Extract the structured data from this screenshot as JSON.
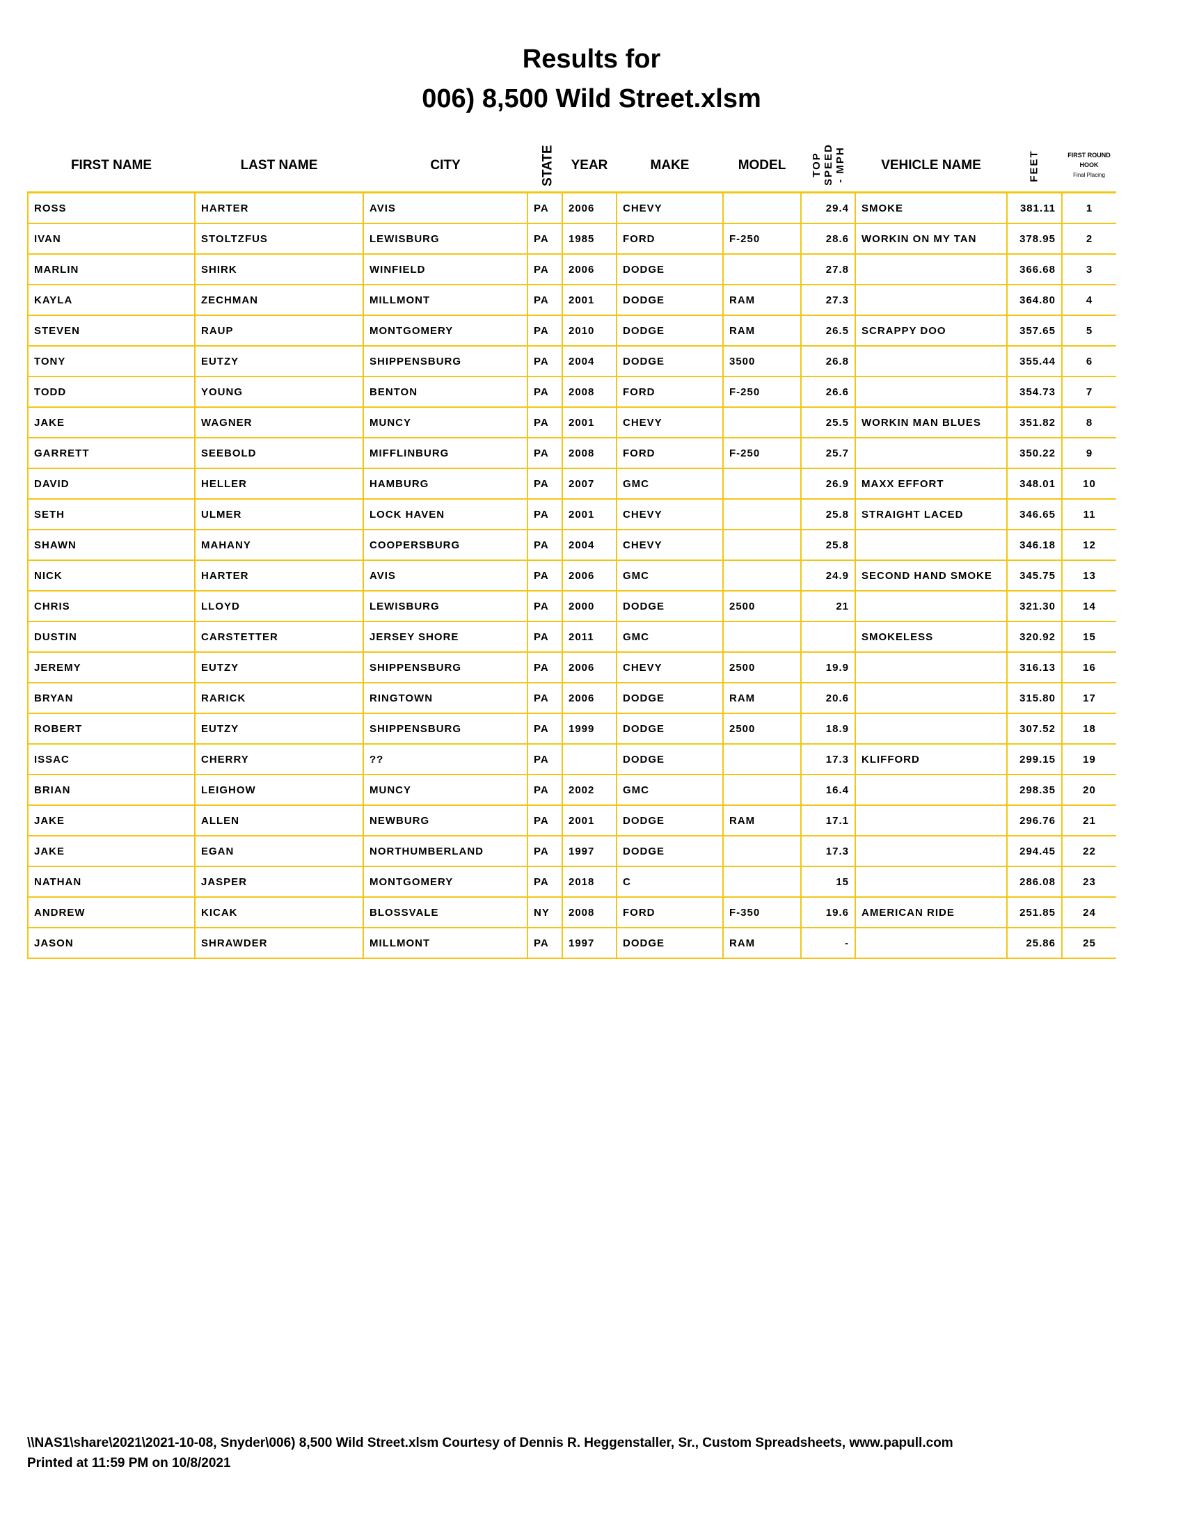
{
  "title_line1": "Results for",
  "title_line2": "006) 8,500 Wild Street.xlsm",
  "accent_color": "#f2c618",
  "headers": {
    "first": "FIRST NAME",
    "last": "LAST NAME",
    "city": "CITY",
    "state": "STATE",
    "year": "YEAR",
    "make": "MAKE",
    "model": "MODEL",
    "speed1": "TOP",
    "speed2": "SPEED",
    "speed3": "- MPH",
    "vehicle": "VEHICLE NAME",
    "feet": "FEET",
    "hook1": "FIRST ROUND",
    "hook2": "HOOK",
    "hook3": "Final Placing"
  },
  "rows": [
    [
      "ROSS",
      "HARTER",
      "AVIS",
      "PA",
      "2006",
      "CHEVY",
      "",
      "29.4",
      "SMOKE",
      "381.11",
      "1"
    ],
    [
      "IVAN",
      "STOLTZFUS",
      "LEWISBURG",
      "PA",
      "1985",
      "FORD",
      "F-250",
      "28.6",
      "WORKIN ON MY TAN",
      "378.95",
      "2"
    ],
    [
      "MARLIN",
      "SHIRK",
      "WINFIELD",
      "PA",
      "2006",
      "DODGE",
      "",
      "27.8",
      "",
      "366.68",
      "3"
    ],
    [
      "KAYLA",
      "ZECHMAN",
      "MILLMONT",
      "PA",
      "2001",
      "DODGE",
      "RAM",
      "27.3",
      "",
      "364.80",
      "4"
    ],
    [
      "STEVEN",
      "RAUP",
      "MONTGOMERY",
      "PA",
      "2010",
      "DODGE",
      "RAM",
      "26.5",
      "SCRAPPY DOO",
      "357.65",
      "5"
    ],
    [
      "TONY",
      "EUTZY",
      "SHIPPENSBURG",
      "PA",
      "2004",
      "DODGE",
      "3500",
      "26.8",
      "",
      "355.44",
      "6"
    ],
    [
      "TODD",
      "YOUNG",
      "BENTON",
      "PA",
      "2008",
      "FORD",
      "F-250",
      "26.6",
      "",
      "354.73",
      "7"
    ],
    [
      "JAKE",
      "WAGNER",
      "MUNCY",
      "PA",
      "2001",
      "CHEVY",
      "",
      "25.5",
      "WORKIN MAN BLUES",
      "351.82",
      "8"
    ],
    [
      "GARRETT",
      "SEEBOLD",
      "MIFFLINBURG",
      "PA",
      "2008",
      "FORD",
      "F-250",
      "25.7",
      "",
      "350.22",
      "9"
    ],
    [
      "DAVID",
      "HELLER",
      "HAMBURG",
      "PA",
      "2007",
      "GMC",
      "",
      "26.9",
      "MAXX EFFORT",
      "348.01",
      "10"
    ],
    [
      "SETH",
      "ULMER",
      "LOCK HAVEN",
      "PA",
      "2001",
      "CHEVY",
      "",
      "25.8",
      "STRAIGHT LACED",
      "346.65",
      "11"
    ],
    [
      "SHAWN",
      "MAHANY",
      "COOPERSBURG",
      "PA",
      "2004",
      "CHEVY",
      "",
      "25.8",
      "",
      "346.18",
      "12"
    ],
    [
      "NICK",
      "HARTER",
      "AVIS",
      "PA",
      "2006",
      "GMC",
      "",
      "24.9",
      "SECOND HAND SMOKE",
      "345.75",
      "13"
    ],
    [
      "CHRIS",
      "LLOYD",
      "LEWISBURG",
      "PA",
      "2000",
      "DODGE",
      "2500",
      "21",
      "",
      "321.30",
      "14"
    ],
    [
      "DUSTIN",
      "CARSTETTER",
      "JERSEY SHORE",
      "PA",
      "2011",
      "GMC",
      "",
      "",
      "SMOKELESS",
      "320.92",
      "15"
    ],
    [
      "JEREMY",
      "EUTZY",
      "SHIPPENSBURG",
      "PA",
      "2006",
      "CHEVY",
      "2500",
      "19.9",
      "",
      "316.13",
      "16"
    ],
    [
      "BRYAN",
      "RARICK",
      "RINGTOWN",
      "PA",
      "2006",
      "DODGE",
      "RAM",
      "20.6",
      "",
      "315.80",
      "17"
    ],
    [
      "ROBERT",
      "EUTZY",
      "SHIPPENSBURG",
      "PA",
      "1999",
      "DODGE",
      "2500",
      "18.9",
      "",
      "307.52",
      "18"
    ],
    [
      "ISSAC",
      "CHERRY",
      "??",
      "PA",
      "",
      "DODGE",
      "",
      "17.3",
      "KLIFFORD",
      "299.15",
      "19"
    ],
    [
      "BRIAN",
      "LEIGHOW",
      "MUNCY",
      "PA",
      "2002",
      "GMC",
      "",
      "16.4",
      "",
      "298.35",
      "20"
    ],
    [
      "JAKE",
      "ALLEN",
      "NEWBURG",
      "PA",
      "2001",
      "DODGE",
      "RAM",
      "17.1",
      "",
      "296.76",
      "21"
    ],
    [
      "JAKE",
      "EGAN",
      "NORTHUMBERLAND",
      "PA",
      "1997",
      "DODGE",
      "",
      "17.3",
      "",
      "294.45",
      "22"
    ],
    [
      "NATHAN",
      "JASPER",
      "MONTGOMERY",
      "PA",
      "2018",
      "C",
      "",
      "15",
      "",
      "286.08",
      "23"
    ],
    [
      "ANDREW",
      "KICAK",
      "BLOSSVALE",
      "NY",
      "2008",
      "FORD",
      "F-350",
      "19.6",
      "AMERICAN RIDE",
      "251.85",
      "24"
    ],
    [
      "JASON",
      "SHRAWDER",
      "MILLMONT",
      "PA",
      "1997",
      "DODGE",
      "RAM",
      "-",
      "",
      "25.86",
      "25"
    ]
  ],
  "footer_line1": "\\\\NAS1\\share\\2021\\2021-10-08, Snyder\\006) 8,500 Wild Street.xlsm  Courtesy of Dennis R. Heggenstaller, Sr., Custom Spreadsheets, www.papull.com",
  "footer_line2": "Printed at 11:59 PM on 10/8/2021"
}
